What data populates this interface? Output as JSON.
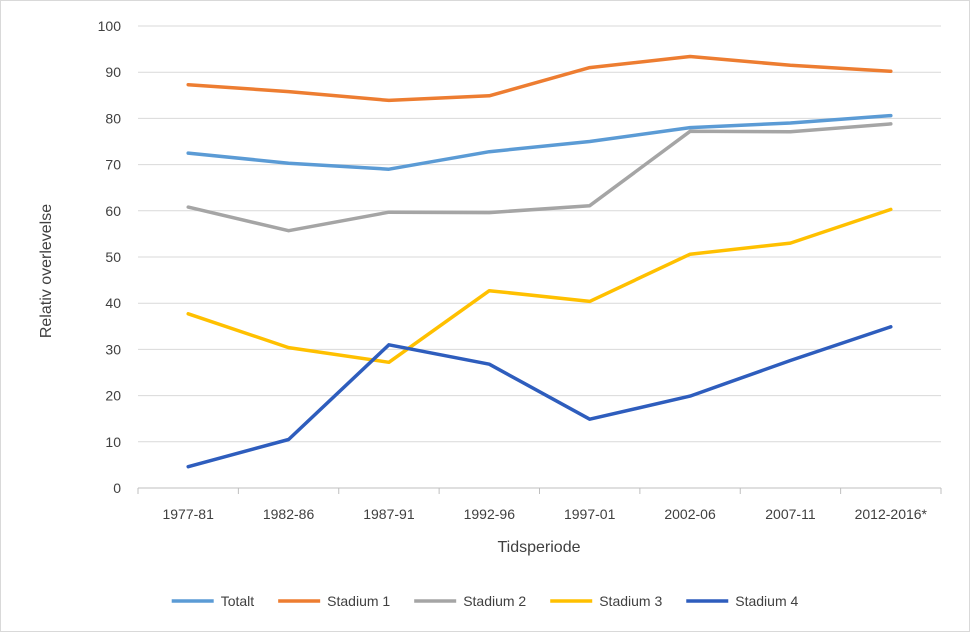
{
  "chart_data": {
    "type": "line",
    "title": "",
    "xlabel": "Tidsperiode",
    "ylabel": "Relativ overlevelse",
    "categories": [
      "1977-81",
      "1982-86",
      "1987-91",
      "1992-96",
      "1997-01",
      "2002-06",
      "2007-11",
      "2012-2016*"
    ],
    "ylim": [
      0,
      100
    ],
    "yticks": [
      0,
      10,
      20,
      30,
      40,
      50,
      60,
      70,
      80,
      90,
      100
    ],
    "grid": true,
    "legend_position": "bottom",
    "series": [
      {
        "name": "Totalt",
        "color": "#5b9bd5",
        "values": [
          72.5,
          70.3,
          69.0,
          72.8,
          75.0,
          78.0,
          79.0,
          80.6
        ]
      },
      {
        "name": "Stadium 1",
        "color": "#ed7d31",
        "values": [
          87.3,
          85.8,
          83.9,
          84.9,
          91.0,
          93.4,
          91.5,
          90.2
        ]
      },
      {
        "name": "Stadium 2",
        "color": "#a5a5a5",
        "values": [
          60.8,
          55.7,
          59.7,
          59.6,
          61.1,
          77.2,
          77.1,
          78.8
        ]
      },
      {
        "name": "Stadium 3",
        "color": "#ffc000",
        "values": [
          37.7,
          30.4,
          27.2,
          42.7,
          40.4,
          50.6,
          53.0,
          60.3
        ]
      },
      {
        "name": "Stadium 4",
        "color": "#2e5dbd",
        "values": [
          4.6,
          10.5,
          31.0,
          26.8,
          14.9,
          19.9,
          27.6,
          34.9
        ]
      }
    ]
  }
}
